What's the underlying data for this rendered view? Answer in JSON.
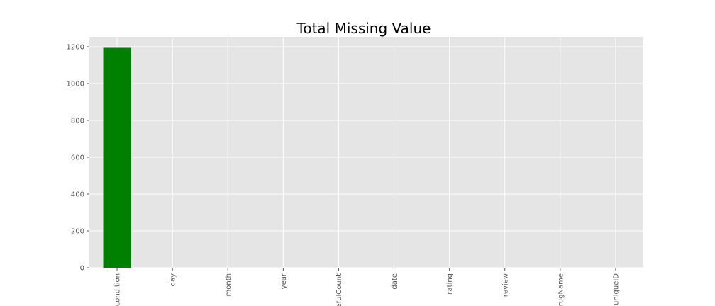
{
  "chart_data": {
    "type": "bar",
    "title": "Total Missing Value",
    "xlabel": "",
    "ylabel": "",
    "categories": [
      "condition",
      "day",
      "month",
      "year",
      "usefulCount",
      "date",
      "rating",
      "review",
      "drugName",
      "uniqueID"
    ],
    "values": [
      1194,
      0,
      0,
      0,
      0,
      0,
      0,
      0,
      0,
      0
    ],
    "ylim": [
      0,
      1253.7
    ],
    "yticks": [
      0,
      200,
      400,
      600,
      800,
      1000,
      1200
    ],
    "grid": true,
    "legend": "none",
    "colors": {
      "bar": "#008000",
      "plot_background": "#E5E5E5",
      "grid": "#FFFFFF",
      "tick_text": "#555555"
    }
  }
}
